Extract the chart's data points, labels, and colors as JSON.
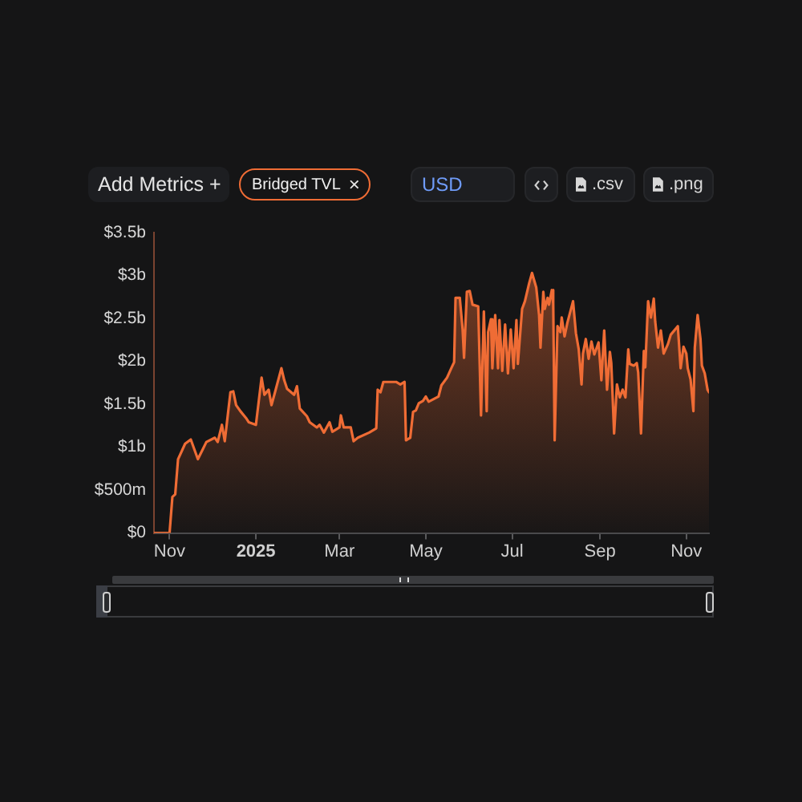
{
  "chart_data": {
    "type": "area",
    "x": [
      "2024-10-21",
      "2024-11-01",
      "2024-11-03",
      "2024-11-05",
      "2024-11-07",
      "2024-11-12",
      "2024-11-16",
      "2024-11-21",
      "2024-11-27",
      "2024-12-03",
      "2024-12-05",
      "2024-12-08",
      "2024-12-10",
      "2024-12-14",
      "2024-12-16",
      "2024-12-18",
      "2024-12-21",
      "2024-12-25",
      "2024-12-27",
      "2025-01-01",
      "2025-01-05",
      "2025-01-07",
      "2025-01-10",
      "2025-01-12",
      "2025-01-14",
      "2025-01-19",
      "2025-01-21",
      "2025-01-23",
      "2025-01-28",
      "2025-01-30",
      "2025-02-01",
      "2025-02-06",
      "2025-02-08",
      "2025-02-13",
      "2025-02-15",
      "2025-02-18",
      "2025-02-22",
      "2025-02-24",
      "2025-03-01",
      "2025-03-02",
      "2025-03-04",
      "2025-03-09",
      "2025-03-11",
      "2025-03-14",
      "2025-03-22",
      "2025-03-27",
      "2025-03-28",
      "2025-03-30",
      "2025-04-01",
      "2025-04-10",
      "2025-04-13",
      "2025-04-16",
      "2025-04-17",
      "2025-04-20",
      "2025-04-22",
      "2025-04-24",
      "2025-04-26",
      "2025-04-29",
      "2025-05-01",
      "2025-05-03",
      "2025-05-10",
      "2025-05-12",
      "2025-05-16",
      "2025-05-19",
      "2025-05-21",
      "2025-05-22",
      "2025-05-25",
      "2025-05-27",
      "2025-05-28",
      "2025-05-30",
      "2025-06-01",
      "2025-06-03",
      "2025-06-07",
      "2025-06-09",
      "2025-06-11",
      "2025-06-13",
      "2025-06-14",
      "2025-06-16",
      "2025-06-17",
      "2025-06-19",
      "2025-06-21",
      "2025-06-22",
      "2025-06-24",
      "2025-06-26",
      "2025-06-28",
      "2025-06-30",
      "2025-07-02",
      "2025-07-04",
      "2025-07-05",
      "2025-07-08",
      "2025-07-10",
      "2025-07-13",
      "2025-07-15",
      "2025-07-18",
      "2025-07-20",
      "2025-07-21",
      "2025-07-23",
      "2025-07-24",
      "2025-07-26",
      "2025-07-27",
      "2025-07-29",
      "2025-07-30",
      "2025-07-31",
      "2025-08-02",
      "2025-08-04",
      "2025-08-05",
      "2025-08-07",
      "2025-08-09",
      "2025-08-13",
      "2025-08-15",
      "2025-08-17",
      "2025-08-19",
      "2025-08-20",
      "2025-08-22",
      "2025-08-24",
      "2025-08-26",
      "2025-08-28",
      "2025-08-31",
      "2025-09-02",
      "2025-09-04",
      "2025-09-06",
      "2025-09-08",
      "2025-09-09",
      "2025-09-11",
      "2025-09-13",
      "2025-09-15",
      "2025-09-17",
      "2025-09-19",
      "2025-09-21",
      "2025-09-22",
      "2025-09-25",
      "2025-09-27",
      "2025-09-28",
      "2025-09-30",
      "2025-10-02",
      "2025-10-03",
      "2025-10-05",
      "2025-10-07",
      "2025-10-09",
      "2025-10-10",
      "2025-10-12",
      "2025-10-14",
      "2025-10-16",
      "2025-10-19",
      "2025-10-21",
      "2025-10-26",
      "2025-10-28",
      "2025-10-30",
      "2025-11-01",
      "2025-11-02",
      "2025-11-04",
      "2025-11-06",
      "2025-11-07",
      "2025-11-09",
      "2025-11-11",
      "2025-11-12",
      "2025-11-14",
      "2025-11-16",
      "2025-11-17"
    ],
    "series": [
      {
        "name": "Bridged TVL",
        "color": "#ef6c35",
        "values": [
          0,
          0,
          420000000,
          450000000,
          860000000,
          1040000000,
          1090000000,
          860000000,
          1060000000,
          1110000000,
          1060000000,
          1260000000,
          1070000000,
          1640000000,
          1650000000,
          1490000000,
          1420000000,
          1340000000,
          1290000000,
          1260000000,
          1810000000,
          1610000000,
          1670000000,
          1490000000,
          1610000000,
          1920000000,
          1780000000,
          1680000000,
          1610000000,
          1710000000,
          1450000000,
          1360000000,
          1290000000,
          1230000000,
          1260000000,
          1170000000,
          1290000000,
          1180000000,
          1230000000,
          1370000000,
          1230000000,
          1230000000,
          1070000000,
          1110000000,
          1170000000,
          1220000000,
          1670000000,
          1640000000,
          1760000000,
          1760000000,
          1730000000,
          1760000000,
          1080000000,
          1110000000,
          1410000000,
          1430000000,
          1510000000,
          1540000000,
          1590000000,
          1530000000,
          1590000000,
          1720000000,
          1810000000,
          1920000000,
          1990000000,
          2740000000,
          2740000000,
          2370000000,
          2040000000,
          2810000000,
          2820000000,
          2660000000,
          2640000000,
          1370000000,
          2580000000,
          1420000000,
          2340000000,
          2490000000,
          1920000000,
          2540000000,
          1920000000,
          2480000000,
          1890000000,
          2430000000,
          1860000000,
          2370000000,
          1920000000,
          2480000000,
          1970000000,
          2610000000,
          2700000000,
          2910000000,
          3030000000,
          2860000000,
          2540000000,
          2160000000,
          2810000000,
          2610000000,
          2740000000,
          2660000000,
          2830000000,
          2670000000,
          1080000000,
          2410000000,
          2340000000,
          2510000000,
          2290000000,
          2450000000,
          2700000000,
          2330000000,
          2140000000,
          1730000000,
          2090000000,
          2260000000,
          2030000000,
          2230000000,
          2080000000,
          2220000000,
          1780000000,
          2360000000,
          1670000000,
          2110000000,
          1980000000,
          1160000000,
          1730000000,
          1580000000,
          1670000000,
          1580000000,
          2140000000,
          1970000000,
          1950000000,
          1980000000,
          1870000000,
          1160000000,
          2120000000,
          1930000000,
          2700000000,
          2510000000,
          2730000000,
          2470000000,
          2160000000,
          2360000000,
          2090000000,
          2200000000,
          2310000000,
          2410000000,
          1920000000,
          2170000000,
          2090000000,
          1920000000,
          1790000000,
          1420000000,
          2160000000,
          2540000000,
          2260000000,
          1950000000,
          1860000000,
          1670000000,
          1640000000
        ]
      }
    ],
    "xlim": [
      "2024-10-21",
      "2025-11-17"
    ],
    "xticks": [
      {
        "value": "2024-11-01",
        "label": "Nov"
      },
      {
        "value": "2025-01-01",
        "label": "2025"
      },
      {
        "value": "2025-03-01",
        "label": "Mar"
      },
      {
        "value": "2025-05-01",
        "label": "May"
      },
      {
        "value": "2025-07-01",
        "label": "Jul"
      },
      {
        "value": "2025-09-01",
        "label": "Sep"
      },
      {
        "value": "2025-11-01",
        "label": "Nov"
      }
    ],
    "ylim": [
      0,
      3500000000
    ],
    "yticks": [
      {
        "value": 0,
        "label": "$0"
      },
      {
        "value": 500000000,
        "label": "$500m"
      },
      {
        "value": 1000000000,
        "label": "$1b"
      },
      {
        "value": 1500000000,
        "label": "$1.5b"
      },
      {
        "value": 2000000000,
        "label": "$2b"
      },
      {
        "value": 2500000000,
        "label": "$2.5b"
      },
      {
        "value": 3000000000,
        "label": "$3b"
      },
      {
        "value": 3500000000,
        "label": "$3.5b"
      }
    ],
    "grid": false,
    "legend": "top left",
    "marker": "none",
    "annotations": [
      "Add Metrics +",
      "×",
      "USD",
      ".csv",
      ".png"
    ]
  }
}
